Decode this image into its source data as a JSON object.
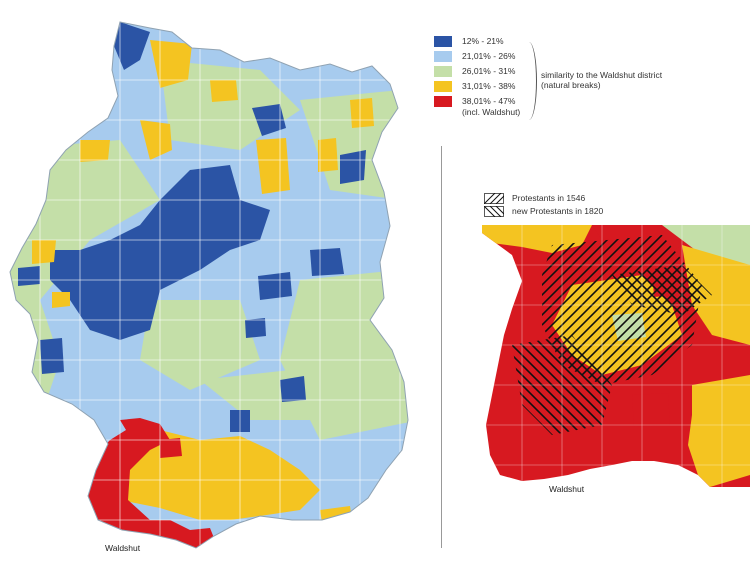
{
  "legend": {
    "items": [
      {
        "label": "12% - 21%",
        "color": "#2b54a5"
      },
      {
        "label": "21,01% - 26%",
        "color": "#a7cbee"
      },
      {
        "label": "26,01% - 31%",
        "color": "#c4dfa8"
      },
      {
        "label": "31,01% - 38%",
        "color": "#f4c421"
      },
      {
        "label": "38,01% - 47%",
        "color": "#d71920"
      }
    ],
    "extra_note": "(incl. Waldshut)",
    "description_line1": "similarity to the Waldshut district",
    "description_line2": "(natural breaks)"
  },
  "hatch_legend": {
    "items": [
      {
        "label": "Protestants in 1546",
        "pattern": "forward-diagonal"
      },
      {
        "label": "new Protestants in 1820",
        "pattern": "back-diagonal"
      }
    ]
  },
  "places": {
    "main_label": "Waldshut",
    "inset_label": "Waldshut"
  }
}
